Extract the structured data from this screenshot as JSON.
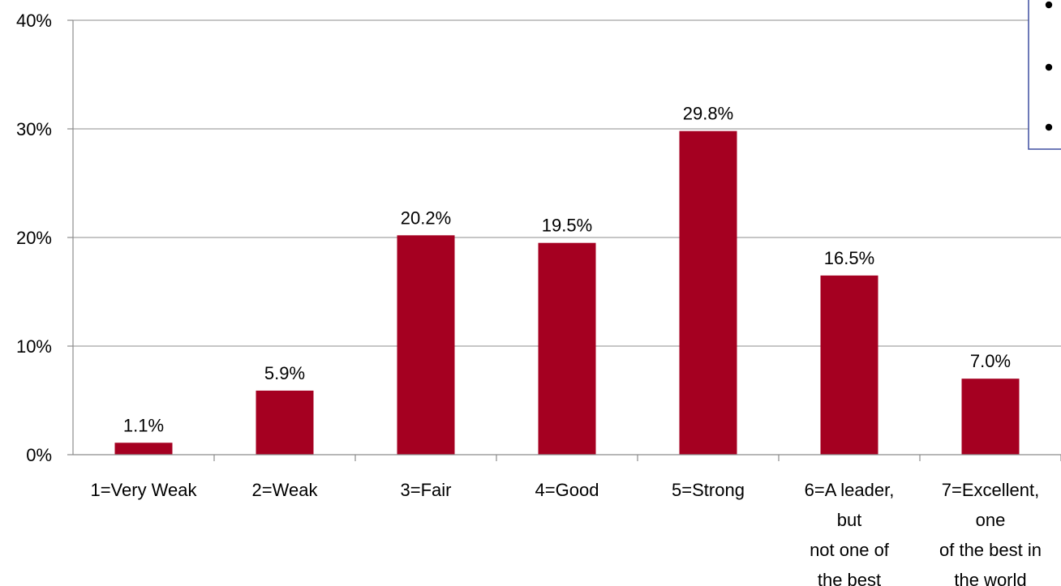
{
  "chart_data": {
    "type": "bar",
    "categories": [
      [
        "1=Very Weak"
      ],
      [
        "2=Weak"
      ],
      [
        "3=Fair"
      ],
      [
        "4=Good"
      ],
      [
        "5=Strong"
      ],
      [
        "6=A leader,",
        "but",
        "not one of",
        "the best"
      ],
      [
        "7=Excellent,",
        "one",
        "of the best in",
        "the world"
      ]
    ],
    "values": [
      1.1,
      5.9,
      20.2,
      19.5,
      29.8,
      16.5,
      7.0
    ],
    "data_labels": [
      "1.1%",
      "5.9%",
      "20.2%",
      "19.5%",
      "29.8%",
      "16.5%",
      "7.0%"
    ],
    "title": "",
    "xlabel": "",
    "ylabel": "",
    "ylim": [
      0,
      40
    ],
    "yticks": [
      0,
      10,
      20,
      30,
      40
    ],
    "ytick_labels": [
      "0%",
      "10%",
      "20%",
      "30%",
      "40%"
    ],
    "grid": true,
    "bar_color": "#A50021",
    "legend": "none"
  },
  "inset_panel": {
    "description_visible": "partially cropped box with three bullet markers at top-right",
    "bullet_color": "#000000",
    "border_color": "#3F4FA0",
    "bullets": [
      "•",
      "•",
      "•"
    ]
  }
}
